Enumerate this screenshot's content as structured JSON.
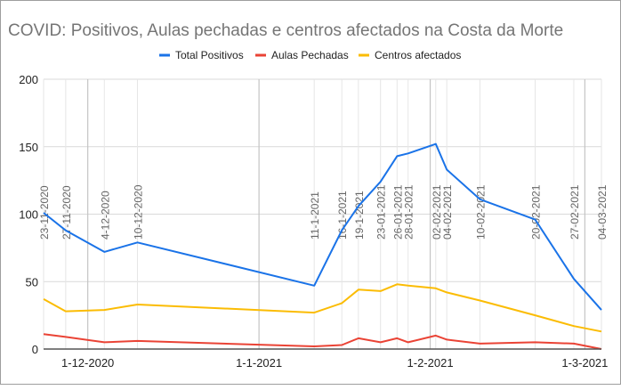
{
  "chart_data": {
    "type": "line",
    "title": "COVID: Positivos, Aulas pechadas e centros afectados na Costa da Morte",
    "legend_position": "top",
    "x_dates": [
      "2020-11-23",
      "2020-11-27",
      "2020-12-04",
      "2020-12-10",
      "2021-01-11",
      "2021-01-16",
      "2021-01-19",
      "2021-01-23",
      "2021-01-26",
      "2021-01-28",
      "2021-02-02",
      "2021-02-04",
      "2021-02-10",
      "2021-02-20",
      "2021-02-27",
      "2021-03-04"
    ],
    "point_labels": [
      "23-11-2020",
      "27-11-2020",
      "4-12-2020",
      "10-12-2020",
      "11-1-2021",
      "16-1-2021",
      "19-1-2021",
      "23-01-2021",
      "26-01-2021",
      "28-01-2021",
      "02-02-2021",
      "04-02-2021",
      "10-02-2021",
      "20-02-2021",
      "27-02-2021",
      "04-03-2021"
    ],
    "x_ticks": [
      {
        "date": "2020-12-01",
        "label": "1-12-2020"
      },
      {
        "date": "2021-01-01",
        "label": "1-1-2021"
      },
      {
        "date": "2021-02-01",
        "label": "1-2-2021"
      },
      {
        "date": "2021-03-01",
        "label": "1-3-2021"
      }
    ],
    "ylim": [
      0,
      200
    ],
    "y_ticks": [
      0,
      50,
      100,
      150,
      200
    ],
    "grid": true,
    "series": [
      {
        "name": "Total Positivos",
        "color": "#1a73e8",
        "values": [
          101,
          88,
          72,
          79,
          47,
          88,
          106,
          124,
          143,
          145,
          152,
          133,
          111,
          96,
          52,
          29
        ]
      },
      {
        "name": "Aulas Pechadas",
        "color": "#ea4335",
        "values": [
          11,
          9,
          5,
          6,
          2,
          3,
          8,
          5,
          8,
          5,
          10,
          7,
          4,
          5,
          4,
          0
        ]
      },
      {
        "name": "Centros afectados",
        "color": "#fbbc04",
        "values": [
          37,
          28,
          29,
          33,
          27,
          34,
          44,
          43,
          48,
          47,
          45,
          42,
          36,
          25,
          17,
          13
        ]
      }
    ]
  }
}
